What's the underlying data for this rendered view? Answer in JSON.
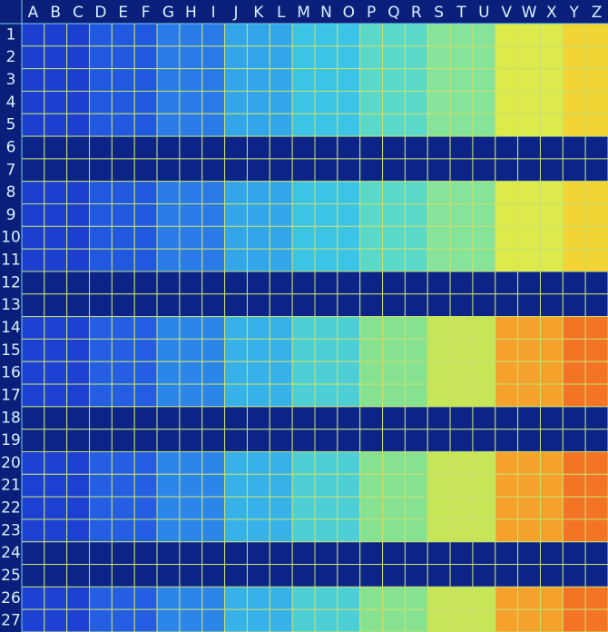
{
  "columns": [
    "A",
    "B",
    "C",
    "D",
    "E",
    "F",
    "G",
    "H",
    "I",
    "J",
    "K",
    "L",
    "M",
    "N",
    "O",
    "P",
    "Q",
    "R",
    "S",
    "T",
    "U",
    "V",
    "W",
    "X",
    "Y",
    "Z"
  ],
  "rows": [
    "1",
    "2",
    "3",
    "4",
    "5",
    "6",
    "7",
    "8",
    "9",
    "10",
    "11",
    "12",
    "13",
    "14",
    "15",
    "16",
    "17",
    "18",
    "19",
    "20",
    "21",
    "22",
    "23",
    "24",
    "25",
    "26",
    "27"
  ]
}
